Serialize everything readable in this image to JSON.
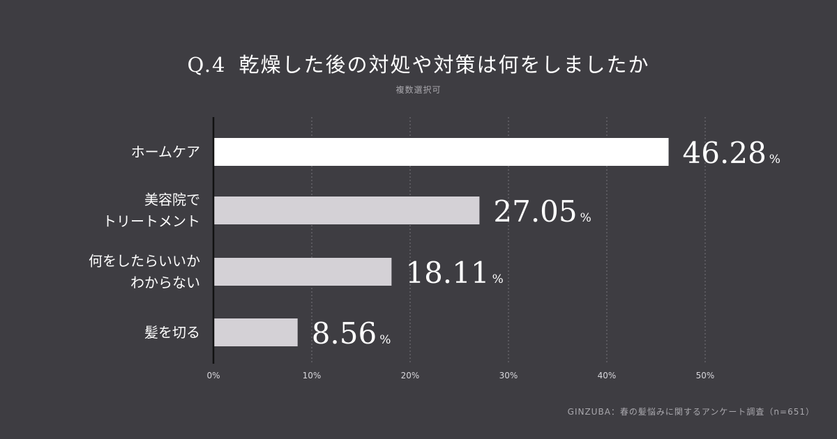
{
  "title": {
    "number": "Q.4",
    "text": "乾燥した後の対処や対策は何をしましたか"
  },
  "subtitle": "複数選択可",
  "source": "GINZUBA：春の髪悩みに関するアンケート調査（n=651）",
  "colors": {
    "background": "#3e3d42",
    "highlight_bar": "#ffffff",
    "bar": "#d4d1d6",
    "grid": "#6d6c72",
    "axis": "#111111"
  },
  "chart_data": {
    "type": "bar",
    "orientation": "horizontal",
    "categories": [
      [
        "ホームケア"
      ],
      [
        "美容院で",
        "トリートメント"
      ],
      [
        "何をしたらいいか",
        "わからない"
      ],
      [
        "髪を切る"
      ]
    ],
    "values": [
      46.28,
      27.05,
      18.11,
      8.56
    ],
    "value_labels": [
      "46.28",
      "27.05",
      "18.11",
      "8.56"
    ],
    "value_unit": "%",
    "xlim": [
      0,
      50
    ],
    "xticks": [
      "0%",
      "10%",
      "20%",
      "30%",
      "40%",
      "50%"
    ],
    "grid": true,
    "grid_style": "dotted vertical",
    "highlight_index": 0
  }
}
